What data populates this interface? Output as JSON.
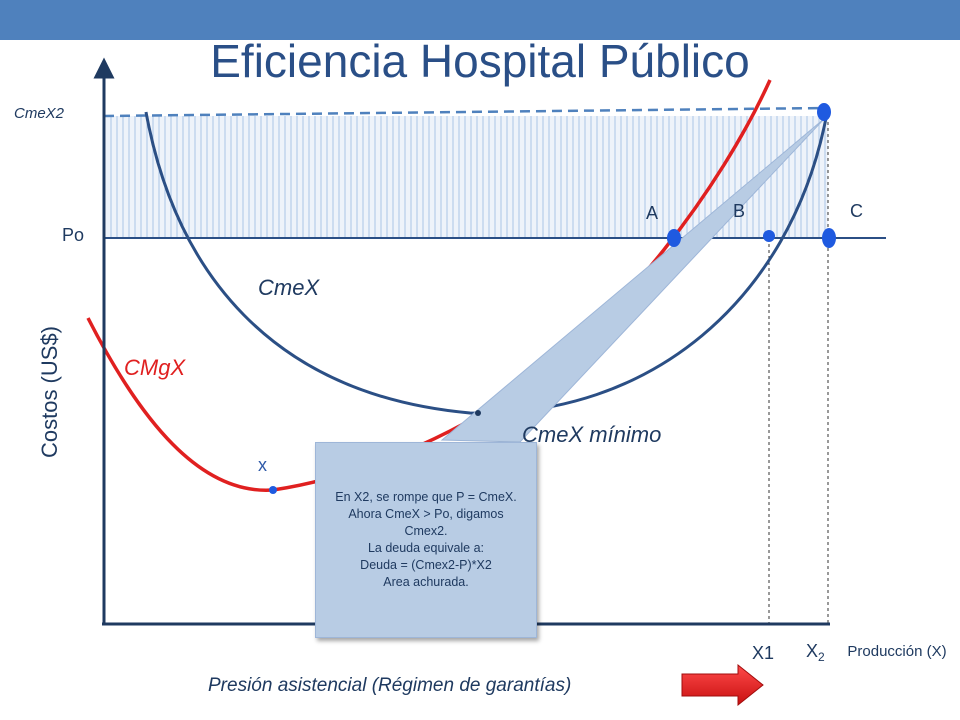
{
  "slide": {
    "title": "Eficiencia Hospital Público"
  },
  "colors": {
    "banner": "#4f81bd",
    "title": "#2a4f87",
    "cmex_curve": "#2b4f85",
    "cmgx_curve": "#e02020",
    "point": "#1f5ae0",
    "callout_fill": "#b8cce4",
    "hatch": "#a9c4e6",
    "arrow": "#e02020"
  },
  "diagram": {
    "y_axis_title": "Costos (US$)",
    "x_axis_title": "Producción (X)",
    "price_levels": {
      "cmex2": "CmeX2",
      "po": "Po"
    },
    "curves": {
      "cmex": "CmeX",
      "cmgx": "CMgX",
      "cmex_min": "CmeX mínimo"
    },
    "points": {
      "x": "x",
      "a": "A",
      "b": "B",
      "c": "C"
    },
    "x_ticks": {
      "x1": "X1",
      "x2": "X",
      "x2_sub": "2"
    },
    "callout_lines": [
      "En X2, se rompe que P = CmeX.",
      "Ahora CmeX > Po, digamos Cmex2.",
      "La deuda equivale a:",
      "Deuda = (Cmex2-P)*X2",
      "Area achurada."
    ],
    "bottom_note": "Presión asistencial (Régimen de garantías)"
  }
}
